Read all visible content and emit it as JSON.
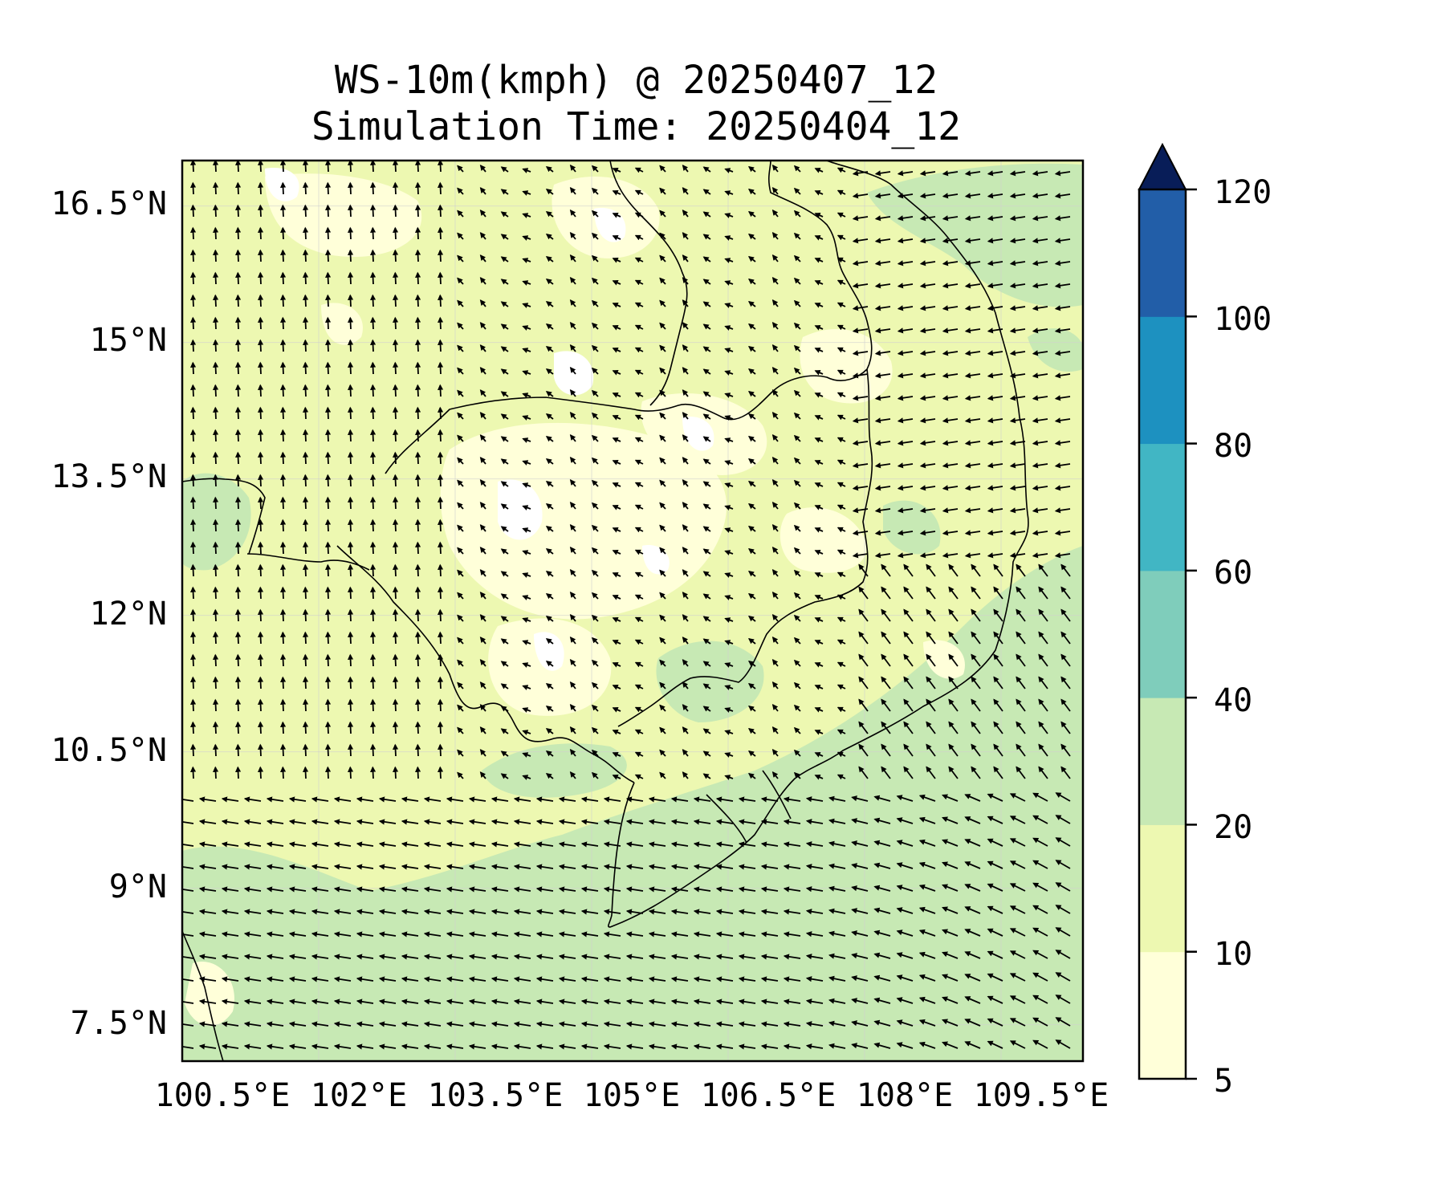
{
  "title": {
    "line1": "WS-10m(kmph) @ 20250407_12",
    "line2": "Simulation Time: 20250404_12"
  },
  "chart_data": {
    "type": "heatmap",
    "variable": "10 m wind speed with wind-direction vectors",
    "units": "kmph",
    "x_axis": {
      "ticks": [
        "100.5°E",
        "102°E",
        "103.5°E",
        "105°E",
        "106.5°E",
        "108°E",
        "109.5°E"
      ],
      "range": [
        100.5,
        110.4
      ]
    },
    "y_axis": {
      "ticks": [
        "16.5°N",
        "15°N",
        "13.5°N",
        "12°N",
        "10.5°N",
        "9°N",
        "7.5°N"
      ],
      "range": [
        7.1,
        17.0
      ]
    },
    "colorbar": {
      "levels": [
        5,
        10,
        20,
        40,
        60,
        80,
        100,
        120
      ],
      "tick_labels": [
        "5",
        "10",
        "20",
        "40",
        "60",
        "80",
        "100",
        "120"
      ],
      "colors": [
        "#ffffd9",
        "#edf8b1",
        "#c7e9b4",
        "#7fcdbb",
        "#41b6c4",
        "#1d91c0",
        "#225ea8",
        "#0c2c84"
      ],
      "extend": "max",
      "extend_color": "#081d58"
    },
    "map_background": "#edf8b1",
    "grid": true
  }
}
